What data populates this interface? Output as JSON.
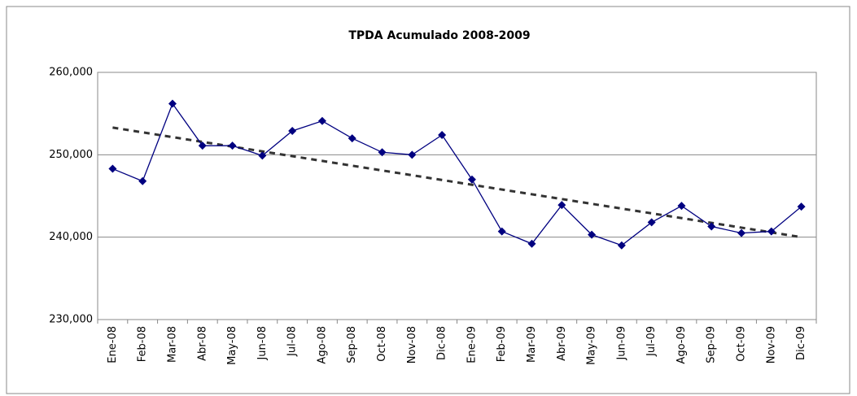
{
  "chart_data": {
    "type": "line",
    "title": "TPDA Acumulado 2008-2009",
    "categories": [
      "Ene-08",
      "Feb-08",
      "Mar-08",
      "Abr-08",
      "May-08",
      "Jun-08",
      "Jul-08",
      "Ago-08",
      "Sep-08",
      "Oct-08",
      "Nov-08",
      "Dic-08",
      "Ene-09",
      "Feb-09",
      "Mar-09",
      "Abr-09",
      "May-09",
      "Jun-09",
      "Jul-09",
      "Ago-09",
      "Sep-09",
      "Oct-09",
      "Nov-09",
      "Dic-09"
    ],
    "series": [
      {
        "color": "#000080",
        "values": [
          248300,
          246800,
          256200,
          251100,
          251100,
          249900,
          252900,
          254100,
          252000,
          250300,
          250000,
          252400,
          247000,
          240700,
          239200,
          243900,
          240300,
          239000,
          241800,
          243800,
          241300,
          240500,
          240700,
          243700
        ]
      }
    ],
    "trendline": {
      "color": "#333333",
      "values": [
        253300,
        240000
      ]
    },
    "ylim": [
      230000,
      260000
    ],
    "yticks": [
      {
        "value": 230000,
        "label": "230,000"
      },
      {
        "value": 240000,
        "label": "240,000"
      },
      {
        "value": 250000,
        "label": "250,000"
      },
      {
        "value": 260000,
        "label": "260,000"
      }
    ],
    "grid": true
  }
}
